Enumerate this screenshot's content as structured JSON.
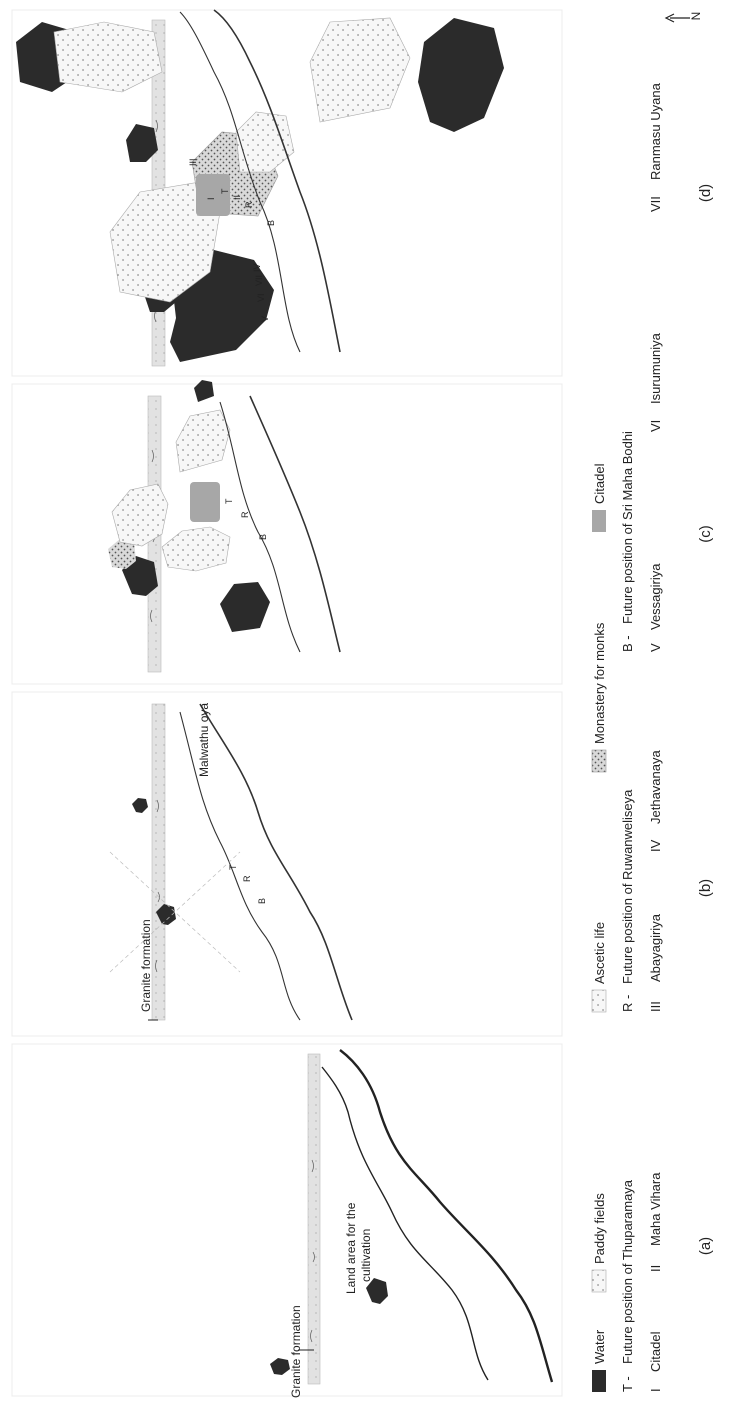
{
  "panels": {
    "a": {
      "caption": "(a)",
      "labels": {
        "granite": "Granite formation",
        "land_line1": "Land area for the",
        "land_line2": "cultivation"
      }
    },
    "b": {
      "caption": "(b)",
      "labels": {
        "granite": "Granite formation",
        "river": "Malwathu oya"
      },
      "marks": [
        "T",
        "R",
        "B"
      ]
    },
    "c": {
      "caption": "(c)",
      "marks": [
        "T",
        "R",
        "B"
      ]
    },
    "d": {
      "caption": "(d)",
      "marks": [
        "T",
        "II",
        "R",
        "B",
        "I",
        "III",
        "IV",
        "V",
        "VI",
        "VII"
      ]
    }
  },
  "north_label": "N",
  "legend": {
    "items": [
      {
        "key": "water",
        "label": "Water",
        "color": "#2b2b2b"
      },
      {
        "key": "paddy",
        "label": "Paddy fields",
        "color": "#ececec"
      },
      {
        "key": "ascetic",
        "label": "Ascetic life",
        "color": "#f1f1f1"
      },
      {
        "key": "monastery",
        "label": "Monastery for monks",
        "color": "#d4d4d4"
      },
      {
        "key": "citadel",
        "label": "Citadel",
        "color": "#a7a7a7"
      }
    ],
    "positions": [
      {
        "code": "T -",
        "label": "Future position of Thuparamaya"
      },
      {
        "code": "R -",
        "label": "Future position of Ruwanweliseya"
      },
      {
        "code": "B -",
        "label": "Future position of Sri Maha Bodhi"
      }
    ],
    "sites": [
      {
        "numeral": "I",
        "name": "Citadel"
      },
      {
        "numeral": "II",
        "name": "Maha Vihara"
      },
      {
        "numeral": "III",
        "name": "Abayagiriya"
      },
      {
        "numeral": "IV",
        "name": "Jethavanaya"
      },
      {
        "numeral": "V",
        "name": "Vessagiriya"
      },
      {
        "numeral": "VI",
        "name": "Isurumuniya"
      },
      {
        "numeral": "VII",
        "name": "Ranmasu Uyana"
      }
    ]
  }
}
